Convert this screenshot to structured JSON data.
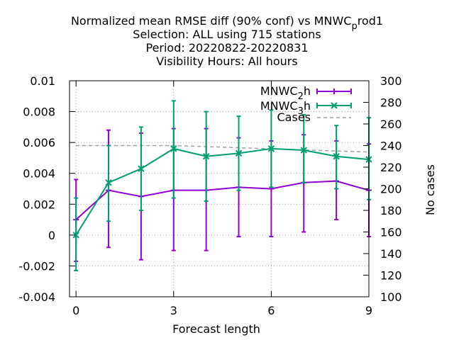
{
  "chart_data": {
    "type": "line",
    "title_lines": [
      "Normalized mean RMSE diff (90% conf) vs MNWC_prod1",
      "Selection: ALL using   715 stations",
      "Period: 20220822-20220831",
      "Visibility   Hours:  All hours"
    ],
    "title_parts": {
      "prefix": "Normalized mean RMSE diff (90% conf) vs MNWC",
      "sub": "p",
      "suffix": "rod1"
    },
    "xlabel": "Forecast length",
    "ylabel": "",
    "y2label": "No cases",
    "xlim": [
      -0.2,
      9
    ],
    "ylim": [
      -0.004,
      0.01
    ],
    "y2lim": [
      100,
      300
    ],
    "x_ticks": [
      0,
      3,
      6,
      9
    ],
    "x_tick_labels": [
      "0",
      "3",
      "6",
      "9"
    ],
    "y_ticks": [
      -0.004,
      -0.002,
      0,
      0.002,
      0.004,
      0.006,
      0.008,
      0.01
    ],
    "y_tick_labels": [
      "-0.004",
      "-0.002",
      "0",
      "0.002",
      "0.004",
      "0.006",
      "0.008",
      "0.01"
    ],
    "y2_ticks": [
      100,
      120,
      140,
      160,
      180,
      200,
      220,
      240,
      260,
      280,
      300
    ],
    "y2_tick_labels": [
      "100",
      "120",
      "140",
      "160",
      "180",
      "200",
      "220",
      "240",
      "260",
      "280",
      "300"
    ],
    "grid": true,
    "legend_position": "top-right",
    "series": [
      {
        "name": "MNWC_2h",
        "legend_prefix": "MNWC",
        "legend_sub": "2",
        "legend_suffix": "h",
        "color": "#9400d3",
        "marker": "plus",
        "x": [
          0,
          1,
          2,
          3,
          4,
          5,
          6,
          7,
          8,
          9
        ],
        "y": [
          0.001,
          0.0029,
          0.0025,
          0.0029,
          0.0029,
          0.0031,
          0.003,
          0.0034,
          0.0035,
          0.0029
        ],
        "err_low": [
          -0.0017,
          -0.0008,
          -0.0016,
          -0.001,
          -0.001,
          -0.0001,
          -0.0001,
          0.0002,
          0.001,
          -0.0001
        ],
        "err_high": [
          0.0036,
          0.0068,
          0.0066,
          0.0069,
          0.0069,
          0.0063,
          0.0061,
          0.0065,
          0.0061,
          0.0059
        ]
      },
      {
        "name": "MNWC_3h",
        "legend_prefix": "MNWC",
        "legend_sub": "3",
        "legend_suffix": "h",
        "color": "#009e73",
        "marker": "x",
        "x": [
          0,
          1,
          2,
          3,
          4,
          5,
          6,
          7,
          8,
          9
        ],
        "y": [
          0,
          0.0034,
          0.0043,
          0.0056,
          0.0051,
          0.0053,
          0.0056,
          0.0055,
          0.0051,
          0.0049
        ],
        "err_low": [
          -0.0023,
          0.0009,
          0.0016,
          0.0024,
          0.0022,
          0.0029,
          0.0031,
          0.0034,
          0.003,
          0.0023
        ],
        "err_high": [
          0.0024,
          0.0058,
          0.007,
          0.0087,
          0.008,
          0.0077,
          0.0081,
          0.0078,
          0.0071,
          0.0076
        ]
      },
      {
        "name": "Cases",
        "color": "#a0a0a0",
        "dashed": true,
        "axis": "y2",
        "x": [
          0,
          1,
          2,
          3,
          4,
          5,
          6,
          7,
          8,
          9
        ],
        "y": [
          240,
          240,
          240,
          240,
          239,
          238,
          237,
          236,
          235,
          234
        ]
      }
    ]
  }
}
